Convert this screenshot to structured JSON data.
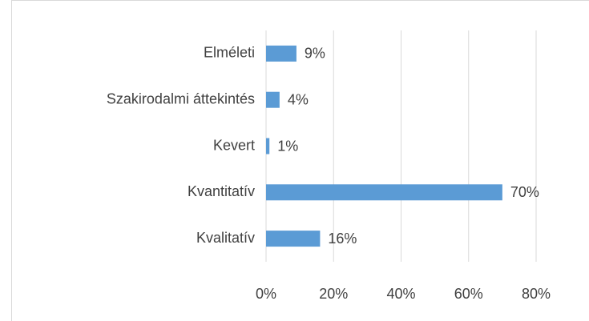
{
  "chart_data": {
    "type": "barh",
    "categories": [
      "Elméleti",
      "Szakirodalmi áttekintés",
      "Kevert",
      "Kvantitatív",
      "Kvalitatív"
    ],
    "values": [
      9,
      4,
      1,
      70,
      16
    ],
    "value_labels": [
      "9%",
      "4%",
      "1%",
      "70%",
      "16%"
    ],
    "color": "#5b9bd5",
    "xlim": [
      0,
      80
    ],
    "xticks": [
      {
        "value": 0,
        "label": "0%"
      },
      {
        "value": 20,
        "label": "20%"
      },
      {
        "value": 40,
        "label": "40%"
      },
      {
        "value": 60,
        "label": "60%"
      },
      {
        "value": 80,
        "label": "80%"
      }
    ],
    "grid": true
  }
}
